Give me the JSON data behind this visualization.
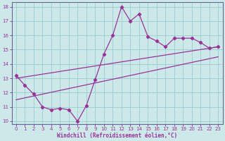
{
  "xlabel": "Windchill (Refroidissement éolien,°C)",
  "bg_color": "#cce8e8",
  "line_color": "#993399",
  "grid_color": "#99cccc",
  "x_data": [
    0,
    1,
    2,
    3,
    4,
    5,
    6,
    7,
    8,
    9,
    10,
    11,
    12,
    13,
    14,
    15,
    16,
    17,
    18,
    19,
    20,
    21,
    22,
    23
  ],
  "y_main": [
    13.2,
    12.5,
    11.9,
    11.0,
    10.8,
    10.9,
    10.8,
    10.0,
    11.1,
    12.9,
    14.7,
    16.0,
    18.0,
    17.0,
    17.5,
    15.9,
    15.6,
    15.2,
    15.8,
    15.8,
    15.8,
    15.5,
    15.1,
    15.2
  ],
  "trend1_start": 13.0,
  "trend1_end": 15.2,
  "trend2_start": 11.5,
  "trend2_end": 14.5,
  "ylim": [
    9.8,
    18.3
  ],
  "xlim": [
    -0.5,
    23.5
  ],
  "yticks": [
    10,
    11,
    12,
    13,
    14,
    15,
    16,
    17,
    18
  ],
  "xticks": [
    0,
    1,
    2,
    3,
    4,
    5,
    6,
    7,
    8,
    9,
    10,
    11,
    12,
    13,
    14,
    15,
    16,
    17,
    18,
    19,
    20,
    21,
    22,
    23
  ]
}
